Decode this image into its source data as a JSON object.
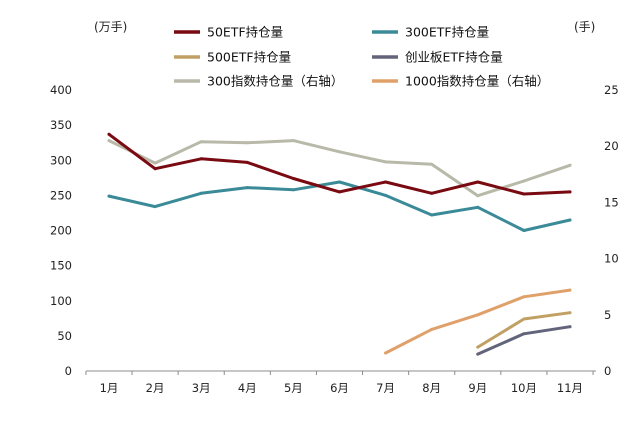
{
  "chart_data": {
    "type": "line",
    "left_unit": "(万手)",
    "right_unit": "(手)",
    "categories": [
      "1月",
      "2月",
      "3月",
      "4月",
      "5月",
      "6月",
      "7月",
      "8月",
      "9月",
      "10月",
      "11月"
    ],
    "y_left": {
      "min": 0,
      "max": 400,
      "ticks": [
        "0",
        "50",
        "100",
        "150",
        "200",
        "250",
        "300",
        "350",
        "400"
      ]
    },
    "y_right": {
      "min": 0,
      "max": 25,
      "ticks": [
        "0",
        "5",
        "10",
        "15",
        "20",
        "25"
      ]
    },
    "series": [
      {
        "name": "50ETF持仓量",
        "axis": "left",
        "color": "#7a0a12",
        "values": [
          337,
          288,
          302,
          297,
          274,
          255,
          269,
          253,
          269,
          252,
          255
        ]
      },
      {
        "name": "300ETF持仓量",
        "axis": "left",
        "color": "#3b8a98",
        "values": [
          249,
          234,
          253,
          261,
          258,
          269,
          250,
          222,
          233,
          200,
          215
        ]
      },
      {
        "name": "500ETF持仓量",
        "axis": "left",
        "color": "#c1a063",
        "values": [
          null,
          null,
          null,
          null,
          null,
          null,
          null,
          null,
          34,
          74,
          83
        ]
      },
      {
        "name": "创业板ETF持仓量",
        "axis": "left",
        "color": "#62647a",
        "values": [
          null,
          null,
          null,
          null,
          null,
          null,
          null,
          null,
          24,
          53,
          63
        ]
      },
      {
        "name": "300指数持仓量（右轴）",
        "axis": "right",
        "color": "#b8b9a9",
        "values": [
          20.5,
          18.5,
          20.4,
          20.3,
          20.5,
          19.5,
          18.6,
          18.4,
          15.6,
          16.9,
          18.3
        ]
      },
      {
        "name": "1000指数持仓量（右轴）",
        "axis": "right",
        "color": "#e0a06a",
        "values": [
          null,
          null,
          null,
          null,
          null,
          null,
          1.6,
          3.7,
          5.0,
          6.6,
          7.2
        ]
      }
    ]
  }
}
